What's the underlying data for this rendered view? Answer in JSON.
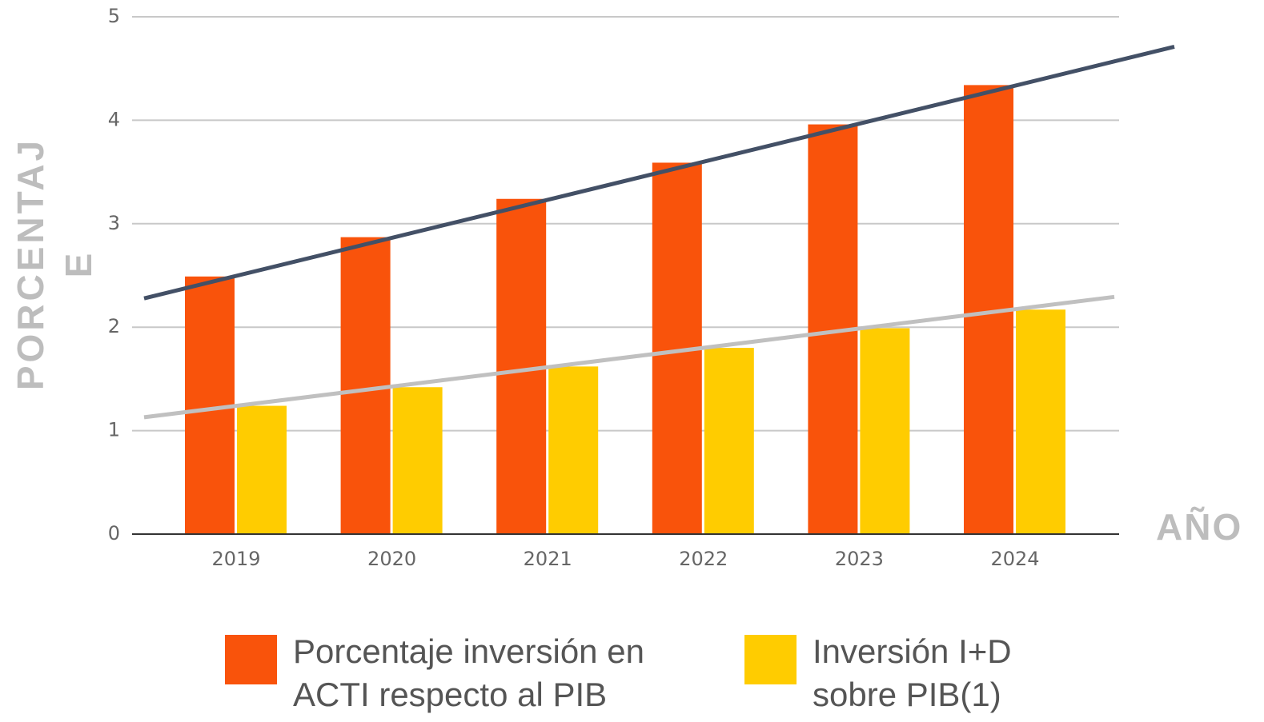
{
  "chart_data": {
    "type": "bar",
    "x_label": "AÑO",
    "y_label": "PORCENTAJE",
    "categories": [
      "2019",
      "2020",
      "2021",
      "2022",
      "2023",
      "2024"
    ],
    "series": [
      {
        "name": "Porcentaje inversión en ACTI respecto al PIB",
        "color": "#f9530b",
        "trendline_color": "#435066",
        "values": [
          2.49,
          2.87,
          3.24,
          3.59,
          3.96,
          4.34
        ]
      },
      {
        "name": "Inversión I+D sobre PIB(1)",
        "color": "#ffcc00",
        "trendline_color": "#c0c0c0",
        "values": [
          1.24,
          1.42,
          1.62,
          1.8,
          1.99,
          2.17
        ]
      }
    ],
    "ylim": [
      0,
      5
    ],
    "yticks": [
      0,
      1,
      2,
      3,
      4,
      5
    ],
    "grid": true,
    "trendlines": true,
    "legend": "bottom"
  }
}
